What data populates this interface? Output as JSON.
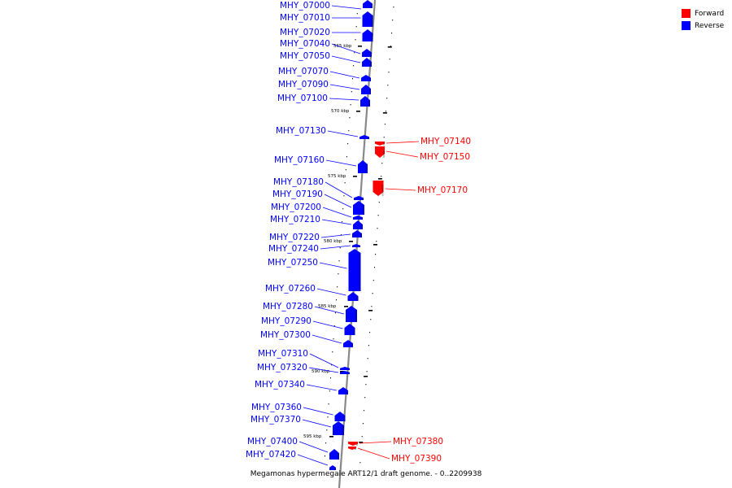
{
  "colors": {
    "forward": "#ff0000",
    "reverse": "#0000ff",
    "backbone": "#888888",
    "ticks": "#000000"
  },
  "legend": {
    "forward": "Forward",
    "reverse": "Reverse"
  },
  "caption": "Megamonas hypermegale ART12/1 draft genome. - 0..2209938",
  "kbp_labels": [
    "565 kbp",
    "570 kbp",
    "575 kbp",
    "580 kbp",
    "585 kbp",
    "590 kbp",
    "595 kbp"
  ],
  "reverse_genes": [
    "MHY_07000",
    "MHY_07010",
    "MHY_07020",
    "MHY_07040",
    "MHY_07050",
    "MHY_07070",
    "MHY_07090",
    "MHY_07100",
    "MHY_07130",
    "MHY_07160",
    "MHY_07180",
    "MHY_07190",
    "MHY_07200",
    "MHY_07210",
    "MHY_07220",
    "MHY_07240",
    "MHY_07250",
    "MHY_07260",
    "MHY_07280",
    "MHY_07290",
    "MHY_07300",
    "MHY_07310",
    "MHY_07320",
    "MHY_07340",
    "MHY_07360",
    "MHY_07370",
    "MHY_07400",
    "MHY_07420"
  ],
  "forward_genes": [
    "MHY_07140",
    "MHY_07150",
    "MHY_07170",
    "MHY_07380",
    "MHY_07390"
  ]
}
